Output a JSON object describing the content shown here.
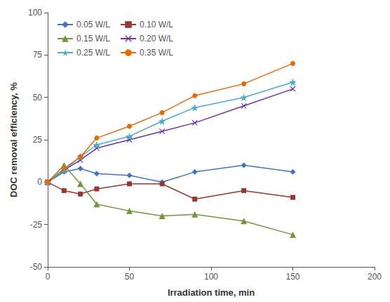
{
  "chart_data": {
    "type": "line",
    "xlabel": "Irradiation time, min",
    "ylabel": "DOC removal efficiency, %",
    "x": [
      0,
      10,
      20,
      30,
      50,
      70,
      90,
      120,
      150
    ],
    "xlim": [
      0,
      200
    ],
    "ylim": [
      -50,
      100
    ],
    "xticks": [
      0,
      50,
      100,
      150,
      200
    ],
    "yticks": [
      -50,
      -25,
      0,
      25,
      50,
      75,
      100
    ],
    "grid": false,
    "legend": "upper left",
    "series": [
      {
        "name": "0.05 W/L",
        "color": "#4472C4",
        "marker": "diamond",
        "values": [
          0,
          6,
          8,
          5,
          4,
          0,
          6,
          10,
          6
        ]
      },
      {
        "name": "0.10 W/L",
        "color": "#953735",
        "marker": "square",
        "values": [
          0,
          -5,
          -7,
          -4,
          -1,
          -1,
          -10,
          -5,
          -9
        ]
      },
      {
        "name": "0.15 W/L",
        "color": "#76923C",
        "marker": "triangle",
        "values": [
          0,
          10,
          -1,
          -13,
          -17,
          -20,
          -19,
          -23,
          -31
        ]
      },
      {
        "name": "0.20 W/L",
        "color": "#7030A0",
        "marker": "x",
        "values": [
          0,
          7,
          13,
          20,
          25,
          30,
          35,
          45,
          55
        ]
      },
      {
        "name": "0.25 W/L",
        "color": "#4BACC6",
        "marker": "star",
        "values": [
          0,
          7,
          15,
          22,
          27,
          36,
          44,
          50,
          59
        ]
      },
      {
        "name": "0.35 W/L",
        "color": "#E36C09",
        "marker": "circle",
        "values": [
          0,
          8,
          15,
          26,
          33,
          41,
          51,
          58,
          70
        ]
      }
    ]
  }
}
